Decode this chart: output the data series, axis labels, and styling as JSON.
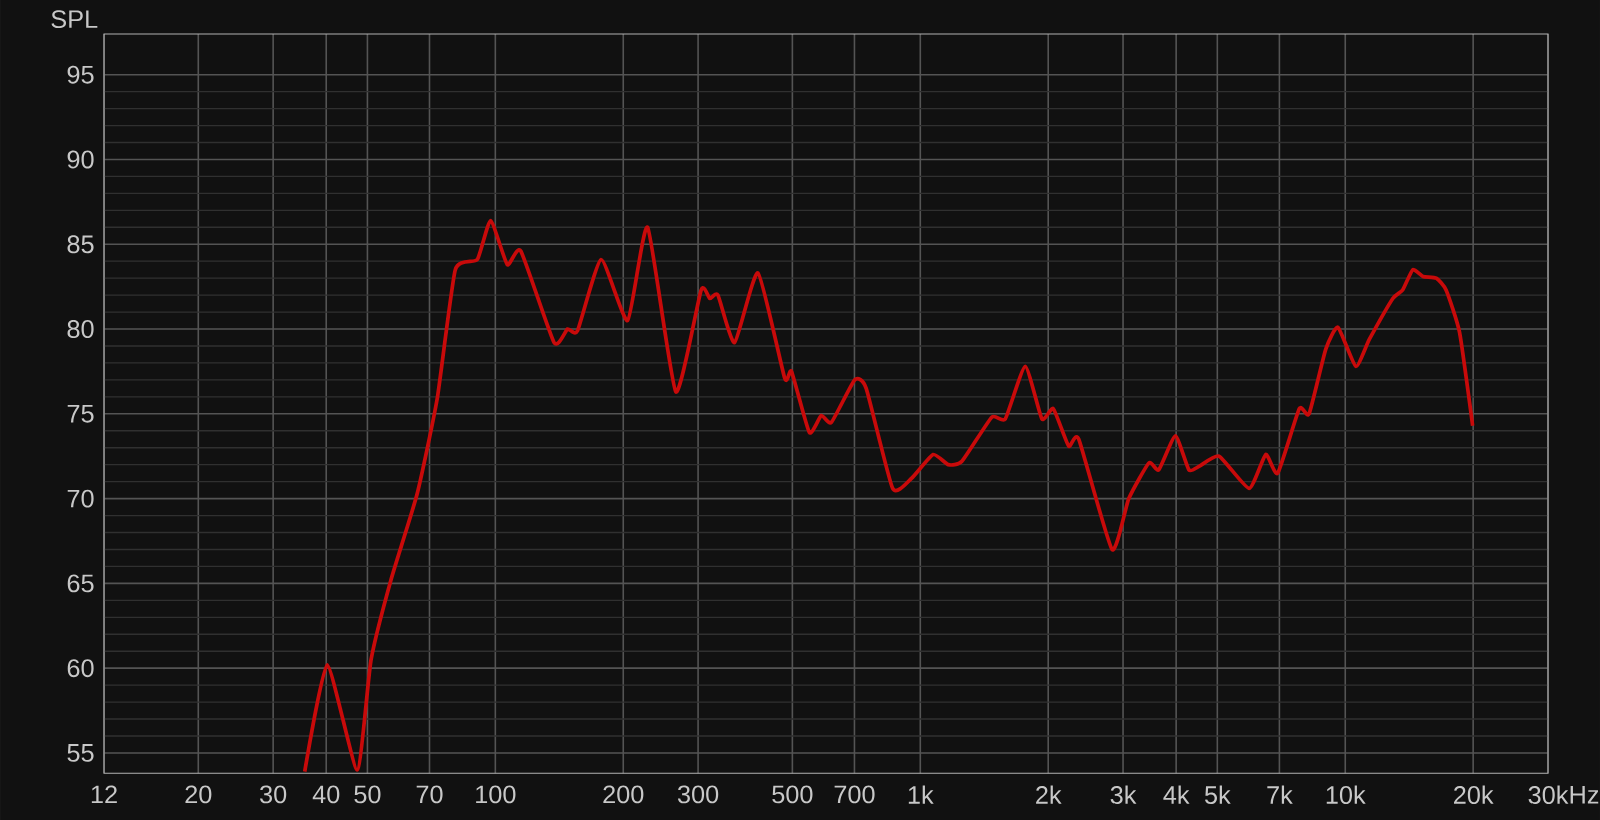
{
  "chart_data": {
    "type": "line",
    "ylabel": "SPL",
    "log": "x",
    "xlim": [
      12,
      30000
    ],
    "ylim": [
      53.8,
      97.4
    ],
    "xticks": [
      12,
      20,
      30,
      40,
      50,
      70,
      100,
      200,
      300,
      500,
      700,
      {
        "value": 1000,
        "label": "1k"
      },
      {
        "value": 2000,
        "label": "2k"
      },
      {
        "value": 3000,
        "label": "3k"
      },
      {
        "value": 4000,
        "label": "4k"
      },
      {
        "value": 5000,
        "label": "5k"
      },
      {
        "value": 7000,
        "label": "7k"
      },
      {
        "value": 10000,
        "label": "10k"
      },
      {
        "value": 20000,
        "label": "20k"
      },
      {
        "value": 30000,
        "label": "30k"
      }
    ],
    "xlabel": "Hz",
    "yticks": [
      55,
      60,
      65,
      70,
      75,
      80,
      85,
      90,
      95
    ],
    "grid": true,
    "marker": "none",
    "line_style": "solid",
    "series": [
      {
        "color": "#c80a0a",
        "x": [
          35.6,
          40.2,
          47.3,
          51.0,
          56.8,
          65.5,
          73.0,
          80.5,
          90.7,
          97.5,
          106.7,
          114.8,
          137.5,
          147.9,
          156.1,
          177.4,
          204.8,
          228.2,
          265.9,
          305,
          319.6,
          334,
          365.6,
          415,
          479.7,
          497.7,
          548.3,
          584.8,
          618,
          701,
          746,
          861,
          954,
          1072,
          1164,
          1253,
          1473,
          1585,
          1766,
          1933,
          2056,
          2234,
          2360,
          2827,
          3095,
          3451,
          3642,
          3985,
          4285,
          4529,
          5047,
          5942,
          6502,
          6936,
          7798,
          8222,
          8995,
          9613,
          10590,
          11400,
          12940,
          13650,
          14420,
          15240,
          16370,
          17270,
          18580,
          19950
        ],
        "values": [
          53.9,
          60.2,
          54.0,
          60.5,
          65.2,
          70.3,
          75.9,
          83.5,
          84.1,
          86.4,
          83.8,
          84.6,
          79.2,
          80.0,
          79.9,
          84.1,
          80.5,
          86.0,
          76.3,
          82.3,
          81.8,
          82.0,
          79.2,
          83.3,
          77.1,
          77.5,
          73.9,
          74.9,
          74.5,
          77.0,
          76.5,
          70.6,
          71.2,
          72.6,
          72.0,
          72.2,
          74.8,
          74.7,
          77.8,
          74.7,
          75.3,
          73.1,
          73.5,
          67.0,
          70.0,
          72.1,
          71.7,
          73.7,
          71.7,
          71.9,
          72.5,
          70.6,
          72.6,
          71.5,
          75.3,
          75.0,
          78.8,
          80.1,
          77.8,
          79.4,
          81.8,
          82.3,
          83.5,
          83.1,
          83.0,
          82.3,
          79.8,
          74.3
        ]
      }
    ]
  }
}
